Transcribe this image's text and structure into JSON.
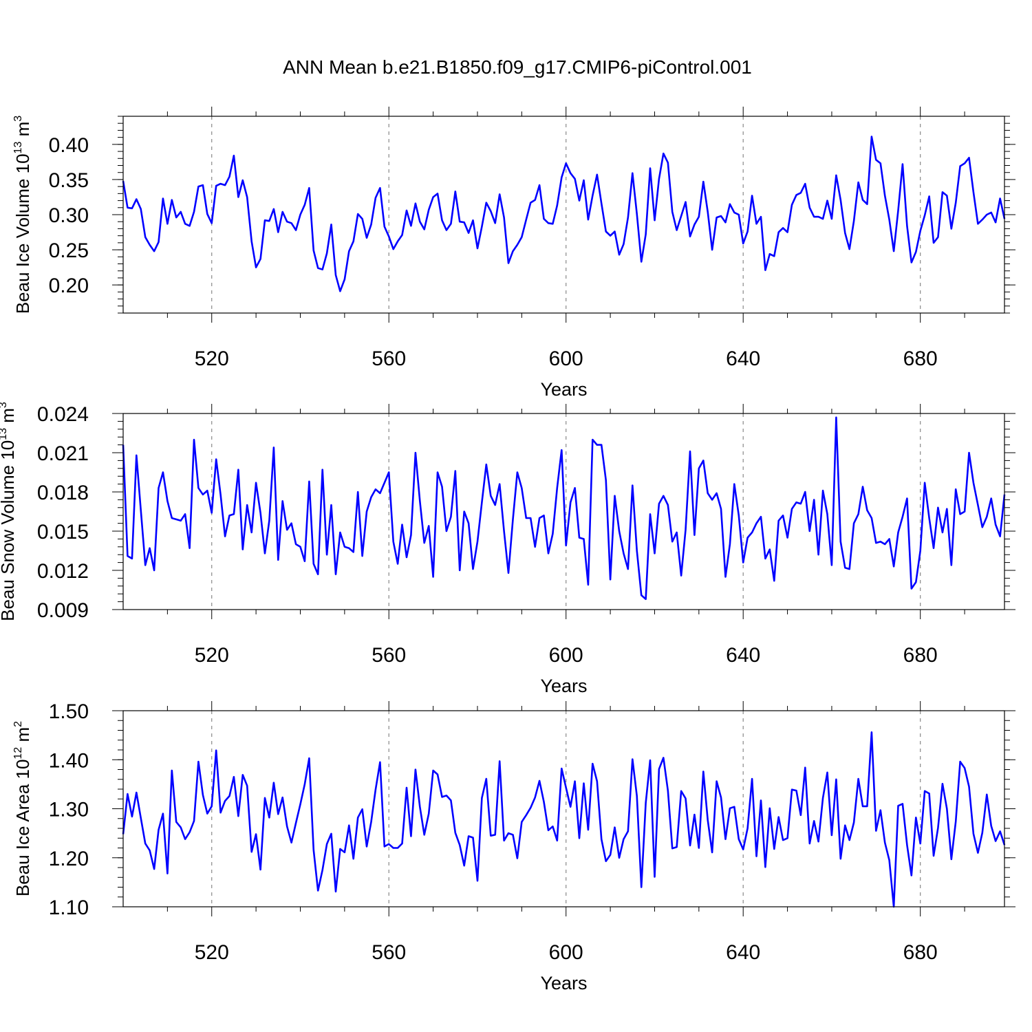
{
  "title": "ANN Mean b.e21.B1850.f09_g17.CMIP6-piControl.001",
  "colors": {
    "series": "#0000ff",
    "grid": "#888888",
    "axis": "#000000"
  },
  "chart_data": [
    {
      "type": "line",
      "name": "beau-ice-volume",
      "ylabel_main": "Beau Ice Volume 10",
      "ylabel_exp": "13",
      "ylabel_unit": " m",
      "ylabel_unit_exp": "3",
      "xlabel": "Years",
      "xlim": [
        500,
        699
      ],
      "ylim": [
        0.16,
        0.44
      ],
      "yticks": [
        0.2,
        0.25,
        0.3,
        0.35,
        0.4
      ],
      "ytick_labels": [
        "0.20",
        "0.25",
        "0.30",
        "0.35",
        "0.40"
      ],
      "yminor_step": 0.01,
      "xticks": [
        520,
        560,
        600,
        640,
        680
      ],
      "xtick_labels": [
        "520",
        "560",
        "600",
        "640",
        "680"
      ],
      "x_start": 500,
      "values": [
        0.348,
        0.31,
        0.309,
        0.322,
        0.308,
        0.268,
        0.257,
        0.248,
        0.261,
        0.323,
        0.287,
        0.321,
        0.296,
        0.304,
        0.287,
        0.284,
        0.304,
        0.34,
        0.342,
        0.301,
        0.288,
        0.341,
        0.344,
        0.342,
        0.354,
        0.384,
        0.325,
        0.349,
        0.325,
        0.262,
        0.225,
        0.237,
        0.292,
        0.291,
        0.308,
        0.275,
        0.304,
        0.29,
        0.288,
        0.278,
        0.3,
        0.314,
        0.338,
        0.249,
        0.224,
        0.222,
        0.245,
        0.286,
        0.214,
        0.191,
        0.208,
        0.248,
        0.262,
        0.301,
        0.294,
        0.267,
        0.286,
        0.324,
        0.338,
        0.283,
        0.269,
        0.251,
        0.262,
        0.271,
        0.306,
        0.284,
        0.316,
        0.29,
        0.279,
        0.307,
        0.325,
        0.33,
        0.292,
        0.278,
        0.287,
        0.333,
        0.29,
        0.289,
        0.274,
        0.292,
        0.252,
        0.283,
        0.317,
        0.305,
        0.288,
        0.329,
        0.296,
        0.231,
        0.248,
        0.257,
        0.268,
        0.293,
        0.317,
        0.321,
        0.342,
        0.294,
        0.288,
        0.287,
        0.313,
        0.353,
        0.373,
        0.359,
        0.351,
        0.32,
        0.349,
        0.293,
        0.327,
        0.357,
        0.316,
        0.276,
        0.27,
        0.276,
        0.243,
        0.258,
        0.296,
        0.359,
        0.301,
        0.233,
        0.272,
        0.366,
        0.292,
        0.351,
        0.387,
        0.374,
        0.304,
        0.278,
        0.298,
        0.318,
        0.269,
        0.286,
        0.297,
        0.347,
        0.304,
        0.25,
        0.296,
        0.298,
        0.289,
        0.315,
        0.303,
        0.3,
        0.259,
        0.276,
        0.327,
        0.287,
        0.297,
        0.221,
        0.244,
        0.241,
        0.275,
        0.281,
        0.275,
        0.314,
        0.328,
        0.331,
        0.344,
        0.31,
        0.297,
        0.297,
        0.294,
        0.32,
        0.294,
        0.356,
        0.321,
        0.274,
        0.251,
        0.291,
        0.346,
        0.321,
        0.315,
        0.411,
        0.378,
        0.373,
        0.327,
        0.293,
        0.248,
        0.306,
        0.372,
        0.284,
        0.232,
        0.247,
        0.277,
        0.299,
        0.326,
        0.26,
        0.268,
        0.332,
        0.327,
        0.28,
        0.317,
        0.369,
        0.373,
        0.381,
        0.332,
        0.287,
        0.293,
        0.3,
        0.303,
        0.289,
        0.323,
        0.294
      ]
    },
    {
      "type": "line",
      "name": "beau-snow-volume",
      "ylabel_main": "Beau Snow Volume 10",
      "ylabel_exp": "13",
      "ylabel_unit": " m",
      "ylabel_unit_exp": "3",
      "xlabel": "Years",
      "xlim": [
        500,
        699
      ],
      "ylim": [
        0.009,
        0.024
      ],
      "yticks": [
        0.009,
        0.012,
        0.015,
        0.018,
        0.021,
        0.024
      ],
      "ytick_labels": [
        "0.009",
        "0.012",
        "0.015",
        "0.018",
        "0.021",
        "0.024"
      ],
      "yminor_step": 0.0006,
      "xticks": [
        520,
        560,
        600,
        640,
        680
      ],
      "xtick_labels": [
        "520",
        "560",
        "600",
        "640",
        "680"
      ],
      "x_start": 500,
      "values": [
        0.0216,
        0.0131,
        0.0129,
        0.0208,
        0.0166,
        0.0124,
        0.0137,
        0.012,
        0.0183,
        0.0195,
        0.0173,
        0.016,
        0.0159,
        0.0158,
        0.0163,
        0.0137,
        0.022,
        0.0183,
        0.0178,
        0.0181,
        0.0164,
        0.0205,
        0.0178,
        0.0146,
        0.0162,
        0.0163,
        0.0197,
        0.0136,
        0.017,
        0.0149,
        0.0187,
        0.0164,
        0.0133,
        0.0158,
        0.0214,
        0.0128,
        0.0173,
        0.0151,
        0.0156,
        0.014,
        0.0138,
        0.0127,
        0.0188,
        0.0125,
        0.0117,
        0.0197,
        0.0132,
        0.017,
        0.0117,
        0.0149,
        0.0138,
        0.0137,
        0.0134,
        0.018,
        0.0131,
        0.0165,
        0.0176,
        0.0182,
        0.0179,
        0.0187,
        0.0195,
        0.0142,
        0.0125,
        0.0155,
        0.013,
        0.0147,
        0.021,
        0.0173,
        0.0141,
        0.0154,
        0.0115,
        0.0195,
        0.0184,
        0.015,
        0.0161,
        0.0196,
        0.012,
        0.0165,
        0.0156,
        0.0121,
        0.0142,
        0.0172,
        0.0201,
        0.0177,
        0.017,
        0.0186,
        0.015,
        0.0118,
        0.0159,
        0.0195,
        0.0183,
        0.016,
        0.016,
        0.0138,
        0.016,
        0.0162,
        0.0133,
        0.0148,
        0.0183,
        0.0212,
        0.0139,
        0.0172,
        0.0183,
        0.0145,
        0.0144,
        0.0109,
        0.022,
        0.0216,
        0.0216,
        0.0189,
        0.0113,
        0.0177,
        0.015,
        0.0133,
        0.0121,
        0.0185,
        0.0135,
        0.0101,
        0.0098,
        0.0163,
        0.0133,
        0.0171,
        0.0177,
        0.017,
        0.0142,
        0.0149,
        0.0116,
        0.0151,
        0.0211,
        0.0147,
        0.0198,
        0.0204,
        0.0179,
        0.0174,
        0.0179,
        0.0167,
        0.0115,
        0.014,
        0.0186,
        0.0162,
        0.0126,
        0.0145,
        0.0149,
        0.0156,
        0.0161,
        0.0129,
        0.0136,
        0.0112,
        0.0158,
        0.0162,
        0.0145,
        0.0167,
        0.0172,
        0.0171,
        0.018,
        0.015,
        0.0174,
        0.0132,
        0.0181,
        0.0163,
        0.0124,
        0.0237,
        0.0142,
        0.0122,
        0.0121,
        0.0156,
        0.0163,
        0.0184,
        0.0166,
        0.016,
        0.0141,
        0.0142,
        0.014,
        0.0144,
        0.0123,
        0.0149,
        0.0161,
        0.0175,
        0.0106,
        0.0111,
        0.0135,
        0.0187,
        0.016,
        0.0137,
        0.0168,
        0.0149,
        0.0167,
        0.0124,
        0.0182,
        0.0163,
        0.0165,
        0.021,
        0.0187,
        0.017,
        0.0153,
        0.0161,
        0.0175,
        0.0155,
        0.0146,
        0.0178
      ]
    },
    {
      "type": "line",
      "name": "beau-ice-area",
      "ylabel_main": "Beau Ice Area 10",
      "ylabel_exp": "12",
      "ylabel_unit": " m",
      "ylabel_unit_exp": "2",
      "xlabel": "Years",
      "xlim": [
        500,
        699
      ],
      "ylim": [
        1.1,
        1.5
      ],
      "yticks": [
        1.1,
        1.2,
        1.3,
        1.4,
        1.5
      ],
      "ytick_labels": [
        "1.10",
        "1.20",
        "1.30",
        "1.40",
        "1.50"
      ],
      "yminor_step": 0.02,
      "xticks": [
        520,
        560,
        600,
        640,
        680
      ],
      "xtick_labels": [
        "520",
        "560",
        "600",
        "640",
        "680"
      ],
      "x_start": 500,
      "values": [
        1.248,
        1.33,
        1.284,
        1.333,
        1.281,
        1.229,
        1.215,
        1.177,
        1.257,
        1.29,
        1.168,
        1.378,
        1.273,
        1.262,
        1.238,
        1.252,
        1.275,
        1.396,
        1.328,
        1.29,
        1.305,
        1.419,
        1.292,
        1.316,
        1.326,
        1.365,
        1.285,
        1.369,
        1.347,
        1.212,
        1.248,
        1.176,
        1.322,
        1.282,
        1.353,
        1.289,
        1.323,
        1.264,
        1.231,
        1.271,
        1.309,
        1.35,
        1.403,
        1.216,
        1.133,
        1.175,
        1.228,
        1.249,
        1.131,
        1.218,
        1.211,
        1.266,
        1.198,
        1.282,
        1.299,
        1.223,
        1.273,
        1.339,
        1.395,
        1.223,
        1.228,
        1.22,
        1.22,
        1.229,
        1.343,
        1.244,
        1.38,
        1.304,
        1.247,
        1.29,
        1.378,
        1.37,
        1.324,
        1.327,
        1.317,
        1.251,
        1.226,
        1.184,
        1.244,
        1.241,
        1.153,
        1.322,
        1.361,
        1.245,
        1.247,
        1.397,
        1.235,
        1.25,
        1.247,
        1.199,
        1.273,
        1.287,
        1.302,
        1.323,
        1.357,
        1.314,
        1.256,
        1.264,
        1.235,
        1.382,
        1.343,
        1.304,
        1.356,
        1.24,
        1.352,
        1.257,
        1.392,
        1.356,
        1.238,
        1.193,
        1.206,
        1.262,
        1.2,
        1.238,
        1.254,
        1.401,
        1.326,
        1.14,
        1.312,
        1.399,
        1.161,
        1.381,
        1.404,
        1.337,
        1.219,
        1.222,
        1.336,
        1.321,
        1.225,
        1.288,
        1.22,
        1.376,
        1.277,
        1.211,
        1.356,
        1.323,
        1.238,
        1.301,
        1.304,
        1.238,
        1.217,
        1.26,
        1.361,
        1.203,
        1.317,
        1.181,
        1.301,
        1.218,
        1.283,
        1.236,
        1.24,
        1.339,
        1.337,
        1.287,
        1.384,
        1.229,
        1.275,
        1.233,
        1.322,
        1.374,
        1.246,
        1.36,
        1.198,
        1.266,
        1.236,
        1.272,
        1.361,
        1.305,
        1.305,
        1.456,
        1.255,
        1.297,
        1.231,
        1.195,
        1.1,
        1.306,
        1.31,
        1.226,
        1.164,
        1.282,
        1.229,
        1.336,
        1.331,
        1.204,
        1.261,
        1.351,
        1.3,
        1.197,
        1.274,
        1.396,
        1.383,
        1.345,
        1.249,
        1.21,
        1.251,
        1.329,
        1.265,
        1.234,
        1.254,
        1.226
      ]
    }
  ]
}
